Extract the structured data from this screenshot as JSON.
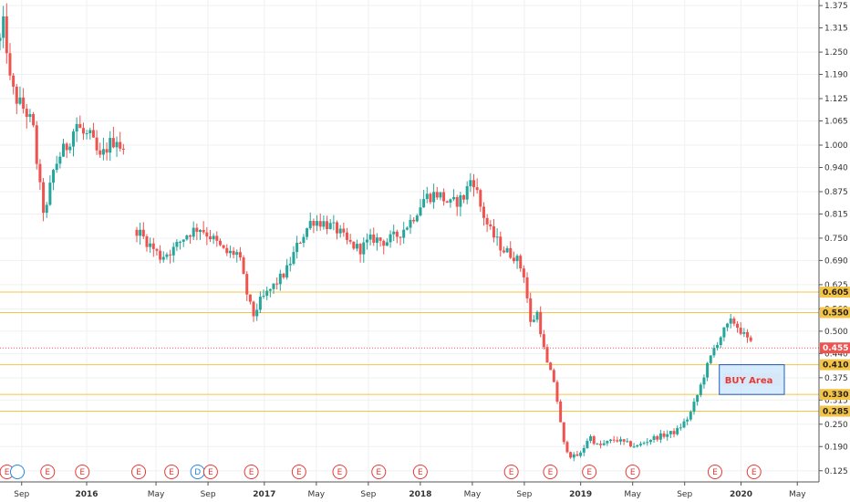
{
  "chart_data": {
    "type": "candlestick",
    "y_axis": {
      "position": "right",
      "ylim": [
        0.095,
        1.39
      ],
      "ticks": [
        "1.375",
        "1.315",
        "1.250",
        "1.190",
        "1.125",
        "1.065",
        "1.000",
        "0.940",
        "0.875",
        "0.815",
        "0.750",
        "0.690",
        "0.625",
        "0.560",
        "0.500",
        "0.440",
        "0.375",
        "0.315",
        "0.250",
        "0.190",
        "0.125"
      ]
    },
    "x_axis": {
      "labels": [
        {
          "text": "Sep",
          "t": 0.25,
          "bold": false
        },
        {
          "text": "2016",
          "t": 1.0,
          "bold": true
        },
        {
          "text": "May",
          "t": 1.8,
          "bold": false
        },
        {
          "text": "Sep",
          "t": 2.4,
          "bold": false
        },
        {
          "text": "2017",
          "t": 3.05,
          "bold": true
        },
        {
          "text": "May",
          "t": 3.65,
          "bold": false
        },
        {
          "text": "Sep",
          "t": 4.25,
          "bold": false
        },
        {
          "text": "2018",
          "t": 4.85,
          "bold": true
        },
        {
          "text": "May",
          "t": 5.45,
          "bold": false
        },
        {
          "text": "Sep",
          "t": 6.05,
          "bold": false
        },
        {
          "text": "2019",
          "t": 6.7,
          "bold": true
        },
        {
          "text": "May",
          "t": 7.3,
          "bold": false
        },
        {
          "text": "Sep",
          "t": 7.9,
          "bold": false
        },
        {
          "text": "2020",
          "t": 8.55,
          "bold": true
        },
        {
          "text": "May",
          "t": 9.2,
          "bold": false
        }
      ]
    },
    "colors": {
      "up": "#26a69a",
      "down": "#ef5350",
      "level": "#f5c445",
      "price": "#ef5350",
      "zone_fill": "#bbdefb",
      "zone_border": "#1e5bc6"
    },
    "levels": [
      {
        "value": 0.605,
        "label": "0.605"
      },
      {
        "value": 0.55,
        "label": "0.550"
      },
      {
        "value": 0.41,
        "label": "0.410"
      },
      {
        "value": 0.33,
        "label": "0.330"
      },
      {
        "value": 0.285,
        "label": "0.285"
      }
    ],
    "last_price": {
      "value": 0.455,
      "label": "0.455"
    },
    "zone": {
      "label": "BUY Area",
      "top": 0.41,
      "bottom": 0.33,
      "t_start": 8.3,
      "t_end": 9.05
    },
    "earnings_markers": [
      {
        "t": 0.08,
        "label": "E",
        "kind": "E"
      },
      {
        "t": 0.2,
        "label": "",
        "kind": "ring"
      },
      {
        "t": 0.55,
        "label": "E",
        "kind": "E"
      },
      {
        "t": 0.95,
        "label": "E",
        "kind": "E"
      },
      {
        "t": 1.6,
        "label": "E",
        "kind": "E"
      },
      {
        "t": 1.98,
        "label": "E",
        "kind": "E"
      },
      {
        "t": 2.28,
        "label": "D",
        "kind": "D"
      },
      {
        "t": 2.43,
        "label": "E",
        "kind": "E"
      },
      {
        "t": 2.9,
        "label": "E",
        "kind": "E"
      },
      {
        "t": 3.45,
        "label": "E",
        "kind": "E"
      },
      {
        "t": 3.92,
        "label": "E",
        "kind": "E"
      },
      {
        "t": 4.37,
        "label": "E",
        "kind": "E"
      },
      {
        "t": 4.85,
        "label": "E",
        "kind": "E"
      },
      {
        "t": 5.9,
        "label": "E",
        "kind": "E"
      },
      {
        "t": 6.35,
        "label": "E",
        "kind": "E"
      },
      {
        "t": 6.8,
        "label": "E",
        "kind": "E"
      },
      {
        "t": 7.3,
        "label": "E",
        "kind": "E"
      },
      {
        "t": 8.25,
        "label": "E",
        "kind": "E"
      },
      {
        "t": 8.7,
        "label": "E",
        "kind": "E"
      }
    ],
    "price_path": [
      [
        0.0,
        1.28
      ],
      [
        0.05,
        1.33
      ],
      [
        0.12,
        1.16
      ],
      [
        0.2,
        1.12
      ],
      [
        0.3,
        1.09
      ],
      [
        0.38,
        1.05
      ],
      [
        0.45,
        0.9
      ],
      [
        0.52,
        0.8
      ],
      [
        0.6,
        0.92
      ],
      [
        0.68,
        0.97
      ],
      [
        0.78,
        1.0
      ],
      [
        0.88,
        1.06
      ],
      [
        0.95,
        1.03
      ],
      [
        1.05,
        1.02
      ],
      [
        1.15,
        0.96
      ],
      [
        1.25,
        1.0
      ],
      [
        1.35,
        1.02
      ],
      [
        1.45,
        0.96
      ],
      [
        1.55,
        0.78
      ],
      [
        1.7,
        0.74
      ],
      [
        1.85,
        0.7
      ],
      [
        2.0,
        0.72
      ],
      [
        2.15,
        0.76
      ],
      [
        2.3,
        0.78
      ],
      [
        2.45,
        0.75
      ],
      [
        2.6,
        0.71
      ],
      [
        2.75,
        0.71
      ],
      [
        2.85,
        0.6
      ],
      [
        2.92,
        0.54
      ],
      [
        3.0,
        0.58
      ],
      [
        3.15,
        0.62
      ],
      [
        3.3,
        0.66
      ],
      [
        3.45,
        0.74
      ],
      [
        3.6,
        0.8
      ],
      [
        3.75,
        0.79
      ],
      [
        3.9,
        0.77
      ],
      [
        4.0,
        0.74
      ],
      [
        4.15,
        0.72
      ],
      [
        4.3,
        0.75
      ],
      [
        4.45,
        0.74
      ],
      [
        4.6,
        0.76
      ],
      [
        4.75,
        0.8
      ],
      [
        4.9,
        0.86
      ],
      [
        5.05,
        0.87
      ],
      [
        5.2,
        0.84
      ],
      [
        5.35,
        0.86
      ],
      [
        5.45,
        0.92
      ],
      [
        5.55,
        0.83
      ],
      [
        5.65,
        0.77
      ],
      [
        5.8,
        0.72
      ],
      [
        5.95,
        0.7
      ],
      [
        6.05,
        0.65
      ],
      [
        6.12,
        0.52
      ],
      [
        6.2,
        0.55
      ],
      [
        6.3,
        0.42
      ],
      [
        6.4,
        0.36
      ],
      [
        6.5,
        0.2
      ],
      [
        6.6,
        0.16
      ],
      [
        6.7,
        0.17
      ],
      [
        6.8,
        0.22
      ],
      [
        6.9,
        0.19
      ],
      [
        7.0,
        0.2
      ],
      [
        7.1,
        0.21
      ],
      [
        7.2,
        0.2
      ],
      [
        7.35,
        0.19
      ],
      [
        7.5,
        0.21
      ],
      [
        7.65,
        0.22
      ],
      [
        7.8,
        0.23
      ],
      [
        7.95,
        0.27
      ],
      [
        8.05,
        0.33
      ],
      [
        8.15,
        0.4
      ],
      [
        8.25,
        0.46
      ],
      [
        8.35,
        0.5
      ],
      [
        8.45,
        0.53
      ],
      [
        8.55,
        0.5
      ],
      [
        8.65,
        0.47
      ],
      [
        8.7,
        0.455
      ]
    ],
    "gaps": [
      [
        1.45,
        1.55
      ]
    ]
  }
}
